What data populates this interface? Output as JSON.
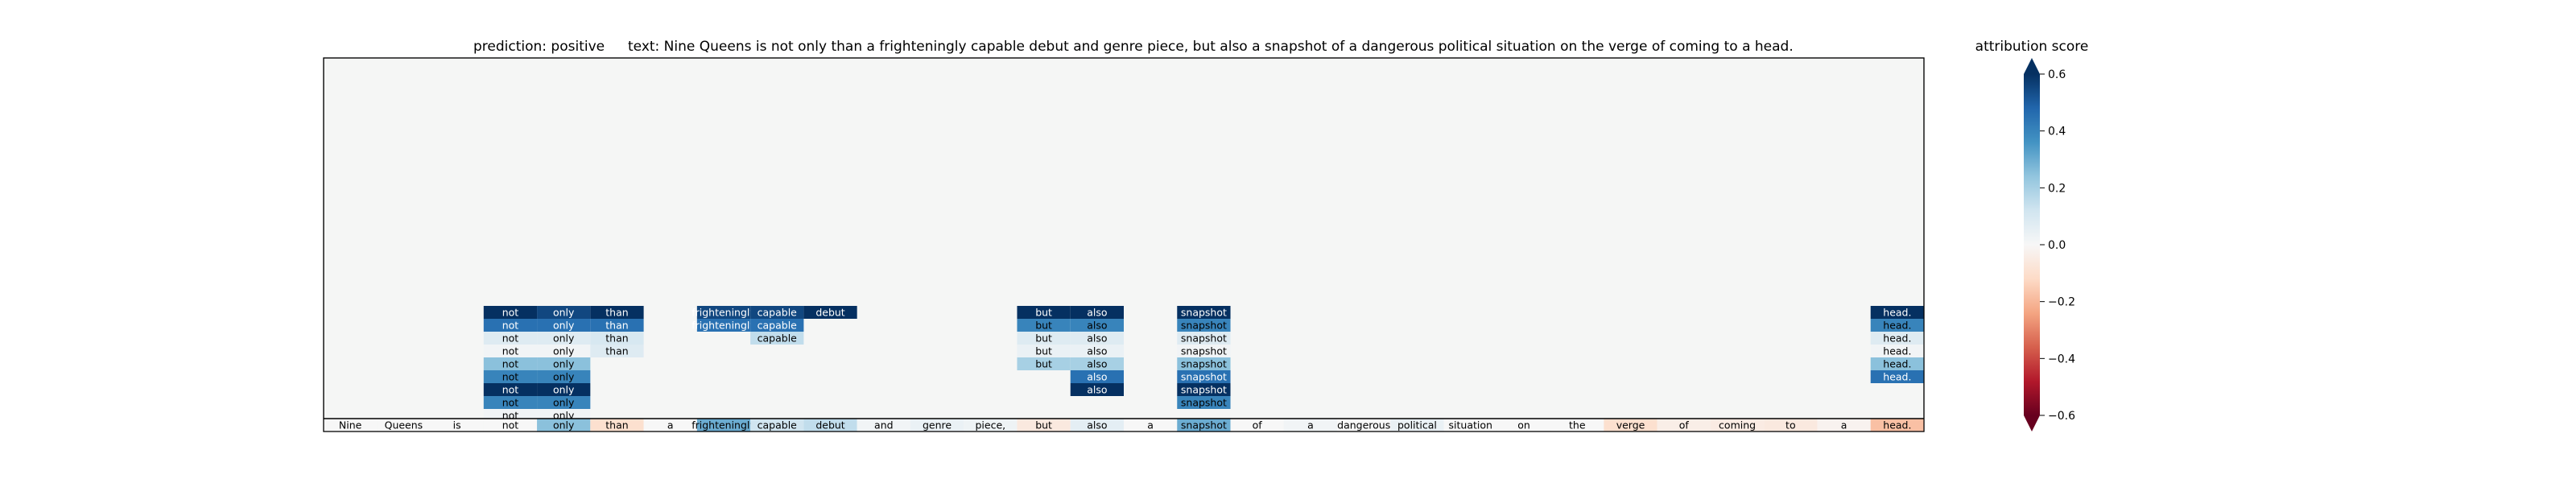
{
  "chart_data": {
    "type": "heatmap",
    "title_prediction": "prediction:  positive",
    "title_text": "text:  Nine Queens is not only than a frighteningly capable debut and genre piece, but also a snapshot of a dangerous political situation on the verge of coming to a head.",
    "colorbar": {
      "label": "attribution score",
      "range": [
        -0.6,
        0.6
      ],
      "ticks": [
        "0.6",
        "0.4",
        "0.2",
        "0.0",
        "−0.2",
        "−0.4",
        "−0.6"
      ],
      "colormap": "RdBu",
      "extend": "both"
    },
    "tokens": [
      {
        "t": "Nine",
        "s": 0.0
      },
      {
        "t": "Queens",
        "s": 0.0
      },
      {
        "t": "is",
        "s": 0.0
      },
      {
        "t": "not",
        "s": 0.0
      },
      {
        "t": "only",
        "s": 0.25
      },
      {
        "t": "than",
        "s": -0.1
      },
      {
        "t": "a",
        "s": 0.0
      },
      {
        "t": "frighteningly",
        "s": 0.3
      },
      {
        "t": "capable",
        "s": 0.12
      },
      {
        "t": "debut",
        "s": 0.15
      },
      {
        "t": "and",
        "s": 0.02
      },
      {
        "t": "genre",
        "s": 0.04
      },
      {
        "t": "piece,",
        "s": 0.03
      },
      {
        "t": "but",
        "s": -0.06
      },
      {
        "t": "also",
        "s": 0.06
      },
      {
        "t": "a",
        "s": 0.0
      },
      {
        "t": "snapshot",
        "s": 0.3
      },
      {
        "t": "of",
        "s": 0.0
      },
      {
        "t": "a",
        "s": 0.02
      },
      {
        "t": "dangerous",
        "s": 0.0
      },
      {
        "t": "political",
        "s": 0.04
      },
      {
        "t": "situation",
        "s": 0.0
      },
      {
        "t": "on",
        "s": 0.0
      },
      {
        "t": "the",
        "s": 0.0
      },
      {
        "t": "verge",
        "s": -0.1
      },
      {
        "t": "of",
        "s": -0.04
      },
      {
        "t": "coming",
        "s": -0.05
      },
      {
        "t": "to",
        "s": -0.06
      },
      {
        "t": "a",
        "s": -0.02
      },
      {
        "t": "head.",
        "s": -0.18
      }
    ],
    "cells": [
      {
        "c": 3,
        "r": 0,
        "t": "not",
        "s": 0.6
      },
      {
        "c": 4,
        "r": 0,
        "t": "only",
        "s": 0.55
      },
      {
        "c": 5,
        "r": 0,
        "t": "than",
        "s": 0.6
      },
      {
        "c": 3,
        "r": 1,
        "t": "not",
        "s": 0.45
      },
      {
        "c": 4,
        "r": 1,
        "t": "only",
        "s": 0.45
      },
      {
        "c": 5,
        "r": 1,
        "t": "than",
        "s": 0.45
      },
      {
        "c": 3,
        "r": 2,
        "t": "not",
        "s": 0.08
      },
      {
        "c": 4,
        "r": 2,
        "t": "only",
        "s": 0.08
      },
      {
        "c": 5,
        "r": 2,
        "t": "than",
        "s": 0.1
      },
      {
        "c": 3,
        "r": 3,
        "t": "not",
        "s": 0.02
      },
      {
        "c": 4,
        "r": 3,
        "t": "only",
        "s": 0.02
      },
      {
        "c": 5,
        "r": 3,
        "t": "than",
        "s": 0.08
      },
      {
        "c": 3,
        "r": 4,
        "t": "not",
        "s": 0.25
      },
      {
        "c": 4,
        "r": 4,
        "t": "only",
        "s": 0.25
      },
      {
        "c": 3,
        "r": 5,
        "t": "not",
        "s": 0.4
      },
      {
        "c": 4,
        "r": 5,
        "t": "only",
        "s": 0.4
      },
      {
        "c": 3,
        "r": 6,
        "t": "not",
        "s": 0.6
      },
      {
        "c": 4,
        "r": 6,
        "t": "only",
        "s": 0.6
      },
      {
        "c": 3,
        "r": 7,
        "t": "not",
        "s": 0.4
      },
      {
        "c": 4,
        "r": 7,
        "t": "only",
        "s": 0.4
      },
      {
        "c": 3,
        "r": 8,
        "t": "not",
        "s": 0.02
      },
      {
        "c": 4,
        "r": 8,
        "t": "only",
        "s": 0.02
      },
      {
        "c": 7,
        "r": 0,
        "t": "frighteningly",
        "s": 0.55
      },
      {
        "c": 8,
        "r": 0,
        "t": "capable",
        "s": 0.55
      },
      {
        "c": 9,
        "r": 0,
        "t": "debut",
        "s": 0.6
      },
      {
        "c": 7,
        "r": 1,
        "t": "frighteningly",
        "s": 0.45
      },
      {
        "c": 8,
        "r": 1,
        "t": "capable",
        "s": 0.45
      },
      {
        "c": 8,
        "r": 2,
        "t": "capable",
        "s": 0.15
      },
      {
        "c": 13,
        "r": 0,
        "t": "but",
        "s": 0.6
      },
      {
        "c": 14,
        "r": 0,
        "t": "also",
        "s": 0.6
      },
      {
        "c": 13,
        "r": 1,
        "t": "but",
        "s": 0.4
      },
      {
        "c": 14,
        "r": 1,
        "t": "also",
        "s": 0.4
      },
      {
        "c": 13,
        "r": 2,
        "t": "but",
        "s": 0.08
      },
      {
        "c": 14,
        "r": 2,
        "t": "also",
        "s": 0.08
      },
      {
        "c": 13,
        "r": 3,
        "t": "but",
        "s": 0.04
      },
      {
        "c": 14,
        "r": 3,
        "t": "also",
        "s": 0.04
      },
      {
        "c": 13,
        "r": 4,
        "t": "but",
        "s": 0.2
      },
      {
        "c": 14,
        "r": 4,
        "t": "also",
        "s": 0.2
      },
      {
        "c": 14,
        "r": 5,
        "t": "also",
        "s": 0.45
      },
      {
        "c": 14,
        "r": 6,
        "t": "also",
        "s": 0.6
      },
      {
        "c": 16,
        "r": 0,
        "t": "snapshot",
        "s": 0.6
      },
      {
        "c": 16,
        "r": 1,
        "t": "snapshot",
        "s": 0.4
      },
      {
        "c": 16,
        "r": 2,
        "t": "snapshot",
        "s": 0.08
      },
      {
        "c": 16,
        "r": 3,
        "t": "snapshot",
        "s": 0.02
      },
      {
        "c": 16,
        "r": 4,
        "t": "snapshot",
        "s": 0.25
      },
      {
        "c": 16,
        "r": 5,
        "t": "snapshot",
        "s": 0.45
      },
      {
        "c": 16,
        "r": 6,
        "t": "snapshot",
        "s": 0.6
      },
      {
        "c": 16,
        "r": 7,
        "t": "snapshot",
        "s": 0.4
      },
      {
        "c": 29,
        "r": 0,
        "t": "head.",
        "s": 0.6
      },
      {
        "c": 29,
        "r": 1,
        "t": "head.",
        "s": 0.4
      },
      {
        "c": 29,
        "r": 2,
        "t": "head.",
        "s": 0.08
      },
      {
        "c": 29,
        "r": 3,
        "t": "head.",
        "s": 0.02
      },
      {
        "c": 29,
        "r": 4,
        "t": "head.",
        "s": 0.25
      },
      {
        "c": 29,
        "r": 5,
        "t": "head.",
        "s": 0.45
      }
    ],
    "background": "#f5f6f5"
  }
}
